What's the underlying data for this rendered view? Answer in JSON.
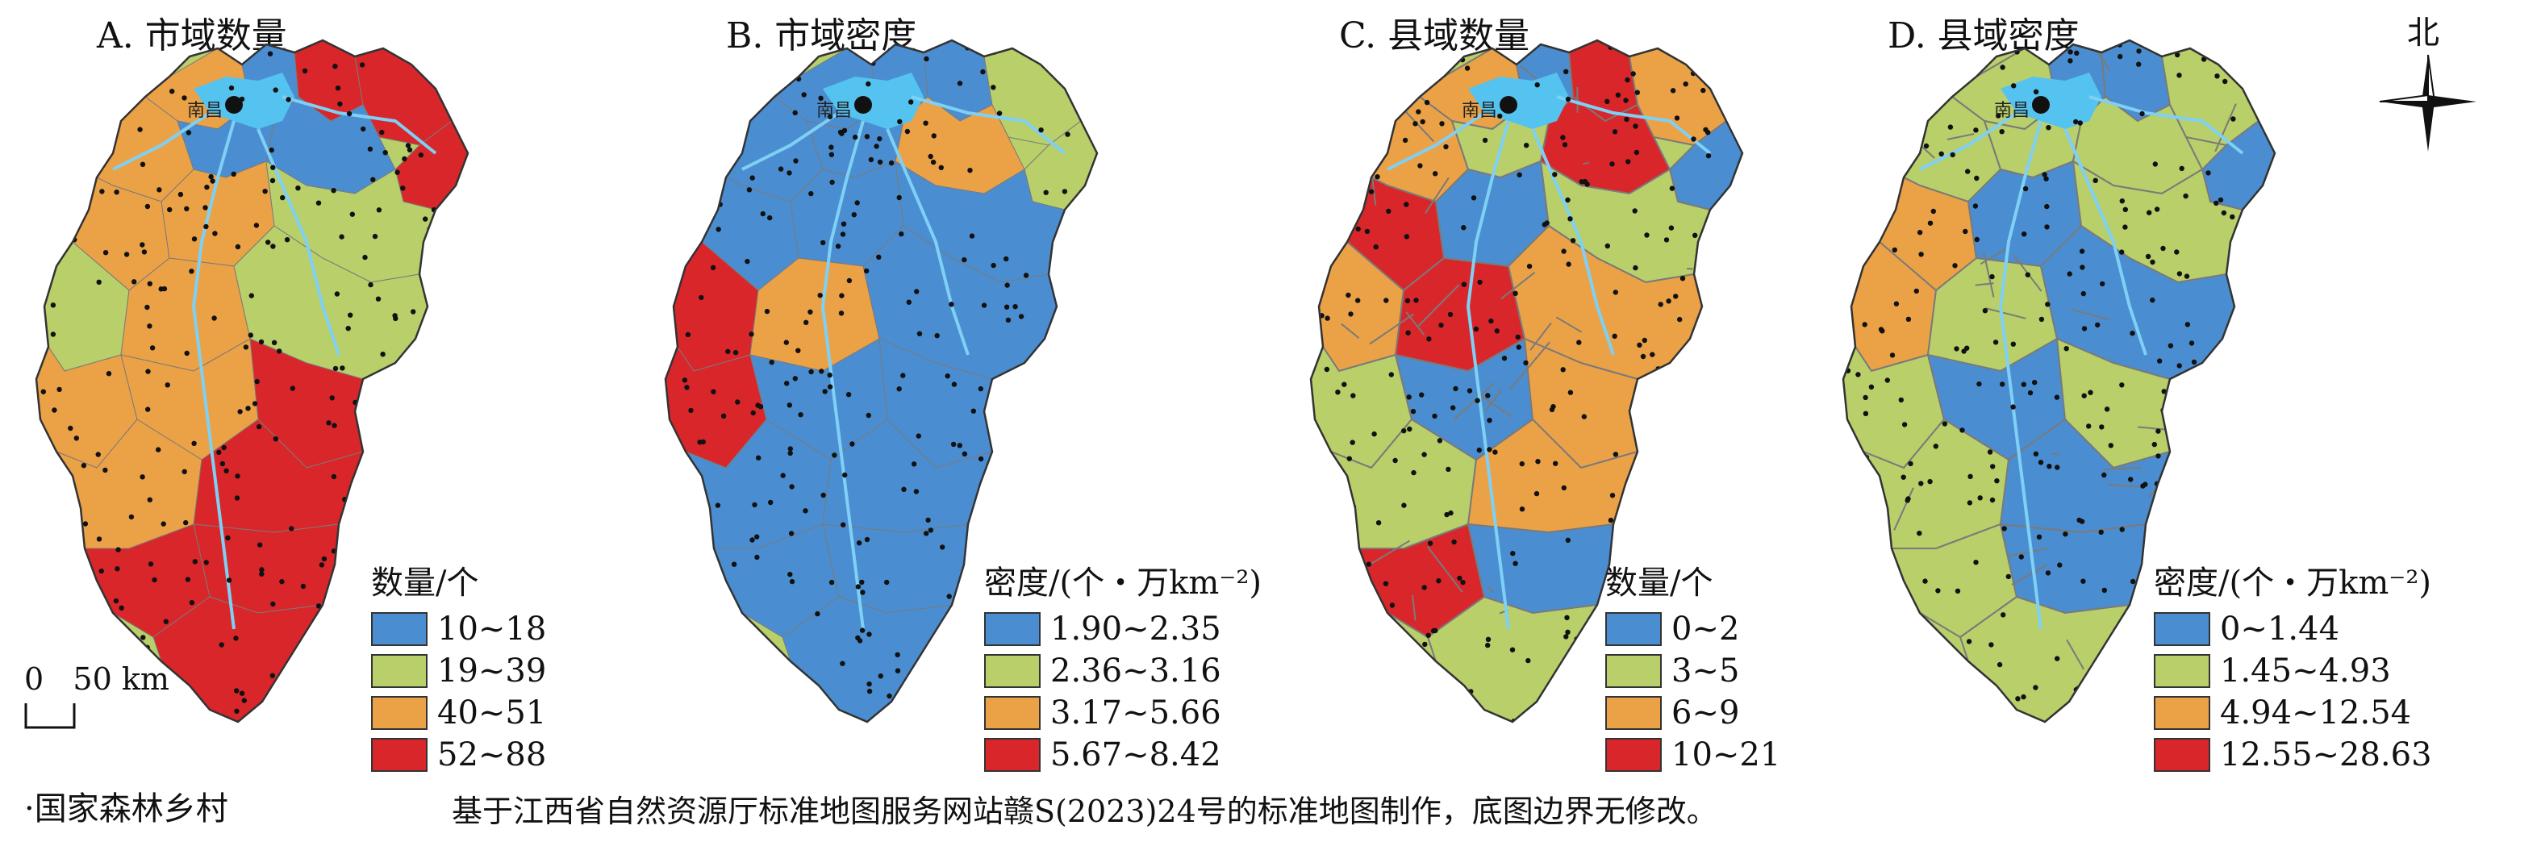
{
  "colors": {
    "blue": "#4a8ed1",
    "green": "#b8cf6a",
    "orange": "#eba247",
    "red": "#d9262a",
    "lake": "#55c3f0",
    "river": "#7fd0f5",
    "dot": "#111111"
  },
  "city": "南昌",
  "panels": [
    {
      "title": "A. 市域数量",
      "legend_title": "数量/个",
      "classes": [
        "10~18",
        "19~39",
        "40~51",
        "52~88"
      ]
    },
    {
      "title": "B. 市域密度",
      "legend_title": "密度/(个・万km⁻²)",
      "classes": [
        "1.90~2.35",
        "2.36~3.16",
        "3.17~5.66",
        "5.67~8.42"
      ]
    },
    {
      "title": "C. 县域数量",
      "legend_title": "数量/个",
      "classes": [
        "0~2",
        "3~5",
        "6~9",
        "10~21"
      ]
    },
    {
      "title": "D. 县域密度",
      "legend_title": "密度/(个・万km⁻²)",
      "classes": [
        "0~1.44",
        "1.45~4.93",
        "4.94~12.54",
        "12.55~28.63"
      ]
    }
  ],
  "north_label": "北",
  "scale_label": "0   50 km",
  "point_legend": "·国家森林乡村",
  "source_note": "基于江西省自然资源厅标准地图服务网站赣S(2023)24号的标准地图制作，底图边界无修改。"
}
